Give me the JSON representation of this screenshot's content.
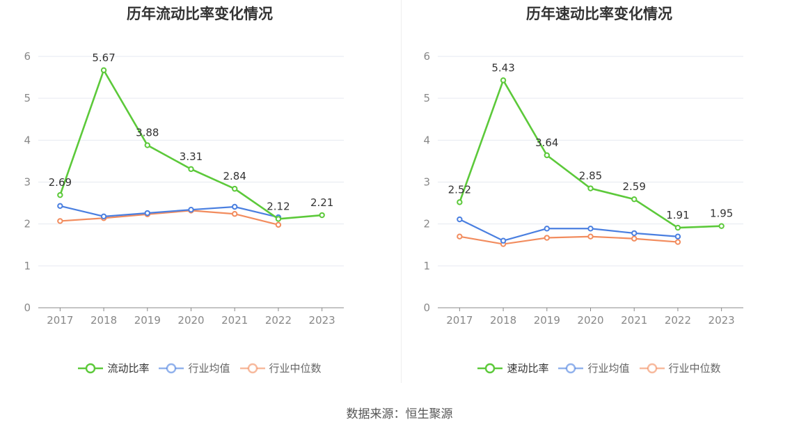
{
  "source": "数据来源：恒生聚源",
  "chart_data": [
    {
      "type": "line",
      "title": "历年流动比率变化情况",
      "x": [
        "2017",
        "2018",
        "2019",
        "2020",
        "2021",
        "2022",
        "2023"
      ],
      "ylim": [
        0,
        6
      ],
      "yticks": [
        "0",
        "1",
        "2",
        "3",
        "4",
        "5",
        "6"
      ],
      "grid": true,
      "legend_position": "bottom",
      "series": [
        {
          "name": "流动比率",
          "color": "#5cc93a",
          "values": [
            2.69,
            5.67,
            3.88,
            3.31,
            2.84,
            2.12,
            2.21
          ],
          "labels": [
            "2.69",
            "5.67",
            "3.88",
            "3.31",
            "2.84",
            "2.12",
            "2.21"
          ]
        },
        {
          "name": "行业均值",
          "color": "#4a7fe0",
          "values": [
            2.43,
            2.18,
            2.26,
            2.34,
            2.41,
            2.16,
            null
          ]
        },
        {
          "name": "行业中位数",
          "color": "#f28c5e",
          "values": [
            2.07,
            2.14,
            2.23,
            2.32,
            2.24,
            1.98,
            null
          ]
        }
      ]
    },
    {
      "type": "line",
      "title": "历年速动比率变化情况",
      "x": [
        "2017",
        "2018",
        "2019",
        "2020",
        "2021",
        "2022",
        "2023"
      ],
      "ylim": [
        0,
        6
      ],
      "yticks": [
        "0",
        "1",
        "2",
        "3",
        "4",
        "5",
        "6"
      ],
      "grid": true,
      "legend_position": "bottom",
      "series": [
        {
          "name": "速动比率",
          "color": "#5cc93a",
          "values": [
            2.52,
            5.43,
            3.64,
            2.85,
            2.59,
            1.91,
            1.95
          ],
          "labels": [
            "2.52",
            "5.43",
            "3.64",
            "2.85",
            "2.59",
            "1.91",
            "1.95"
          ]
        },
        {
          "name": "行业均值",
          "color": "#4a7fe0",
          "values": [
            2.11,
            1.6,
            1.89,
            1.89,
            1.78,
            1.7,
            null
          ]
        },
        {
          "name": "行业中位数",
          "color": "#f28c5e",
          "values": [
            1.7,
            1.52,
            1.67,
            1.7,
            1.65,
            1.57,
            null
          ]
        }
      ]
    }
  ]
}
